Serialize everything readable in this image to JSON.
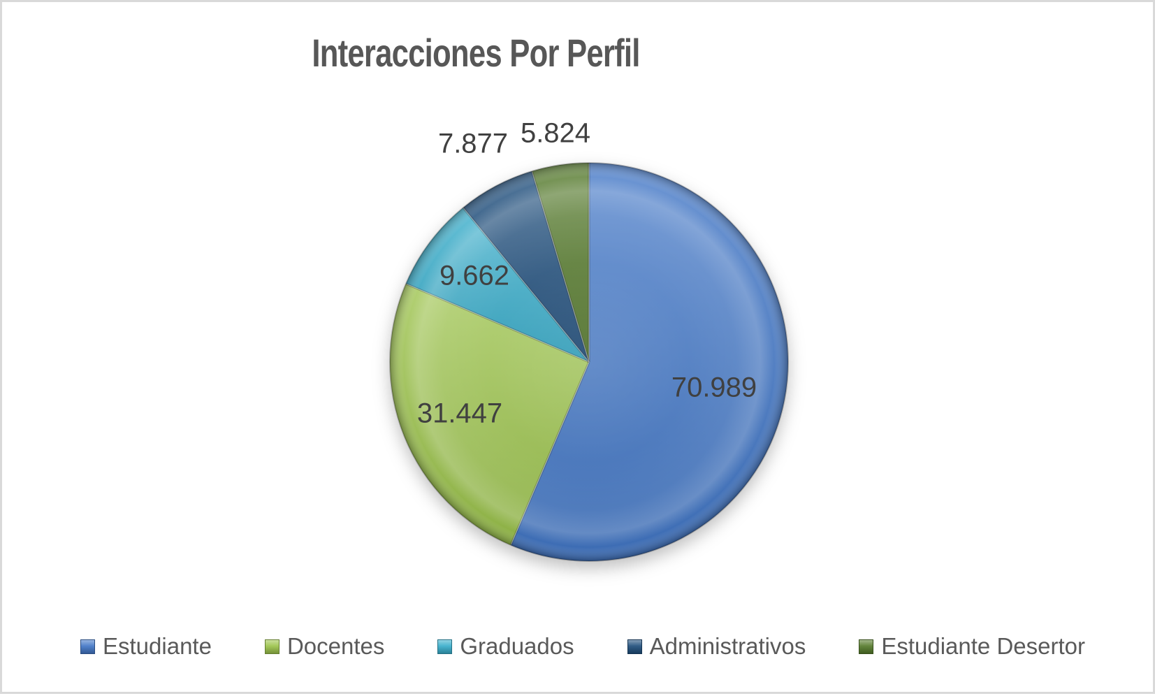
{
  "window": {
    "background_color": "#ffffff",
    "border_color": "#d9d9d9"
  },
  "chart_data": {
    "type": "pie",
    "title": "Interacciones Por Perfil",
    "legend_position": "bottom",
    "start_angle_deg": 0,
    "direction": "clockwise",
    "number_format": "thousands-dot",
    "slices": [
      {
        "label": "Estudiante",
        "value": 70989,
        "display": "70.989",
        "color": "#4277C7",
        "label_placement": "inside"
      },
      {
        "label": "Docentes",
        "value": 31447,
        "display": "31.447",
        "color": "#9CC34B",
        "label_placement": "inside"
      },
      {
        "label": "Graduados",
        "value": 9662,
        "display": "9.662",
        "color": "#38ADCB",
        "label_placement": "inside"
      },
      {
        "label": "Administrativos",
        "value": 7877,
        "display": "7.877",
        "color": "#1F4E7C",
        "label_placement": "outside"
      },
      {
        "label": "Estudiante Desertor",
        "value": 5824,
        "display": "5.824",
        "color": "#557A2B",
        "label_placement": "outside"
      }
    ]
  },
  "text_colors": {
    "title": "#575757",
    "data_label": "#404040",
    "legend": "#595959"
  }
}
